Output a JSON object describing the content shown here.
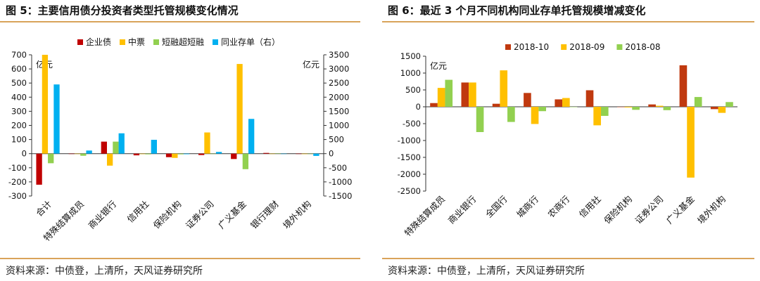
{
  "figures": [
    {
      "title": "图 5：主要信用债分投资者类型托管规模变化情况",
      "source": "资料来源：中债登，上清所，天风证券研究所"
    },
    {
      "title": "图 6：最近 3 个月不同机构同业存单托管规模增减变化",
      "source": "资料来源：中债登，上清所，天风证券研究所"
    }
  ],
  "chart_data": [
    {
      "type": "bar",
      "title": "图 5：主要信用债分投资者类型托管规模变化情况",
      "y_unit_left": "亿元",
      "y_unit_right": "亿元",
      "categories": [
        "合计",
        "特殊结算成员",
        "商业银行",
        "信用社",
        "保险机构",
        "证券公司",
        "广义基金",
        "银行理财",
        "境外机构"
      ],
      "ylim": [
        -300,
        700
      ],
      "yticks": [
        -300,
        -200,
        -100,
        0,
        100,
        200,
        300,
        400,
        500,
        600,
        700
      ],
      "y2lim": [
        -1500,
        3500
      ],
      "y2ticks": [
        -1500,
        -1000,
        -500,
        0,
        500,
        1000,
        1500,
        2000,
        2500,
        3000,
        3500
      ],
      "series": [
        {
          "name": "企业债",
          "color": "#c00000",
          "axis": "left",
          "values": [
            -220,
            0,
            85,
            -12,
            -25,
            -10,
            -38,
            5,
            -2
          ]
        },
        {
          "name": "中票",
          "color": "#ffc000",
          "axis": "left",
          "values": [
            700,
            0,
            -85,
            -3,
            -30,
            150,
            635,
            -2,
            -3
          ]
        },
        {
          "name": "短融超短融",
          "color": "#92d050",
          "axis": "left",
          "values": [
            -68,
            -15,
            85,
            -5,
            -5,
            0,
            -110,
            2,
            0
          ]
        },
        {
          "name": "同业存单（右）",
          "color": "#00b0f0",
          "axis": "right",
          "values": [
            2450,
            110,
            720,
            490,
            -20,
            60,
            1230,
            0,
            -80
          ]
        }
      ],
      "legend": "top"
    },
    {
      "type": "bar",
      "title": "图 6：最近 3 个月不同机构同业存单托管规模增减变化",
      "y_unit_left": "亿元",
      "categories": [
        "特殊结算成员",
        "商业银行",
        "全国行",
        "城商行",
        "农商行",
        "信用社",
        "保险机构",
        "证券公司",
        "广义基金",
        "境外机构"
      ],
      "ylim": [
        -2500,
        1500
      ],
      "yticks": [
        -2500,
        -2000,
        -1500,
        -1000,
        -500,
        0,
        500,
        1000,
        1500
      ],
      "series": [
        {
          "name": "2018-10",
          "color": "#c0390f",
          "values": [
            110,
            720,
            90,
            410,
            220,
            490,
            0,
            70,
            1230,
            -70
          ]
        },
        {
          "name": "2018-09",
          "color": "#ffc000",
          "values": [
            560,
            720,
            1080,
            -510,
            260,
            -550,
            -20,
            30,
            -2100,
            -180
          ]
        },
        {
          "name": "2018-08",
          "color": "#92d050",
          "values": [
            800,
            -750,
            -450,
            -130,
            0,
            -270,
            -90,
            -100,
            290,
            140
          ]
        }
      ],
      "legend": "top"
    }
  ]
}
